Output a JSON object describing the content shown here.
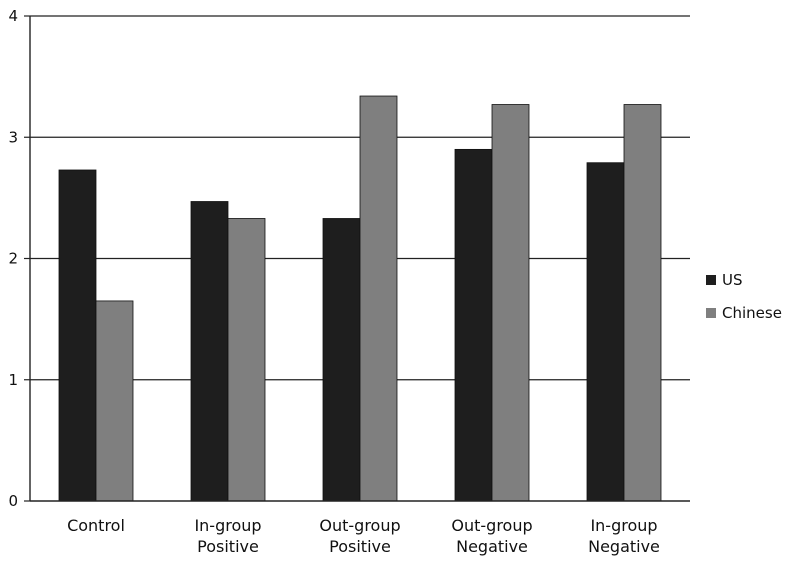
{
  "chart_data": {
    "type": "bar",
    "categories": [
      [
        "Control"
      ],
      [
        "In-group",
        "Positive"
      ],
      [
        "Out-group",
        "Positive"
      ],
      [
        "Out-group",
        "Negative"
      ],
      [
        "In-group",
        "Negative"
      ]
    ],
    "series": [
      {
        "name": "US",
        "color": "#1e1e1e",
        "values": [
          2.73,
          2.47,
          2.33,
          2.9,
          2.79
        ]
      },
      {
        "name": "Chinese",
        "color": "#7f7f7f",
        "values": [
          1.65,
          2.33,
          3.34,
          3.27,
          3.27
        ]
      }
    ],
    "ylim": [
      0,
      4
    ],
    "yticks": [
      "0",
      "1",
      "2",
      "3",
      "4"
    ],
    "grid": true,
    "legend_position": "right"
  }
}
